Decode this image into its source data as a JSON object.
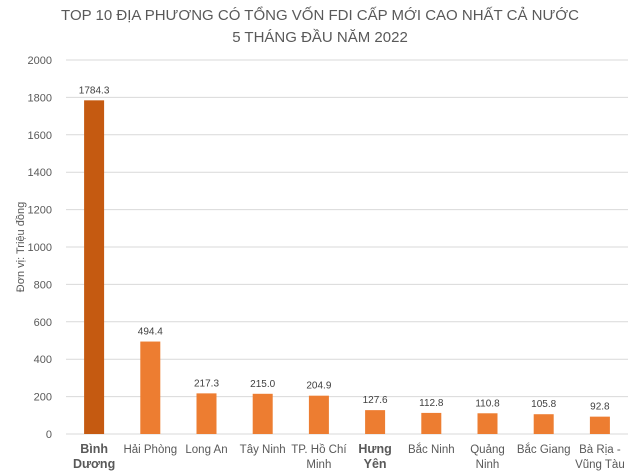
{
  "chart_data": {
    "type": "bar",
    "title": [
      "TOP 10 ĐỊA PHƯƠNG CÓ TỔNG VỐN FDI CẤP MỚI CAO NHẤT CẢ NƯỚC",
      "5 THÁNG ĐẦU NĂM 2022"
    ],
    "ylabel": "Đơn vị: Triệu đồng",
    "xlabel": "",
    "ylim": [
      0,
      2000
    ],
    "yticks": [
      "0",
      "200",
      "400",
      "600",
      "800",
      "1000",
      "1200",
      "1400",
      "1600",
      "1800",
      "2000"
    ],
    "grid": true,
    "categories": [
      [
        "Bình",
        "Dương"
      ],
      [
        "Hải Phòng"
      ],
      [
        "Long An"
      ],
      [
        "Tây Ninh"
      ],
      [
        "TP. Hồ Chí",
        "Minh"
      ],
      [
        "Hưng",
        "Yên"
      ],
      [
        "Bắc Ninh"
      ],
      [
        "Quảng",
        "Ninh"
      ],
      [
        "Bắc Giang"
      ],
      [
        "Bà Rịa -",
        "Vũng Tàu"
      ]
    ],
    "values": [
      1784.3,
      494.4,
      217.3,
      215.0,
      204.9,
      127.6,
      112.8,
      110.8,
      105.8,
      92.8
    ],
    "value_labels": [
      "1784.3",
      "494.4",
      "217.3",
      "215.0",
      "204.9",
      "127.6",
      "112.8",
      "110.8",
      "105.8",
      "92.8"
    ],
    "bold_categories": [
      0,
      5
    ],
    "colors": {
      "highlight": "#C55A11",
      "bar": "#ED7D31",
      "grid": "#D9D9D9",
      "text": "#595959"
    }
  }
}
